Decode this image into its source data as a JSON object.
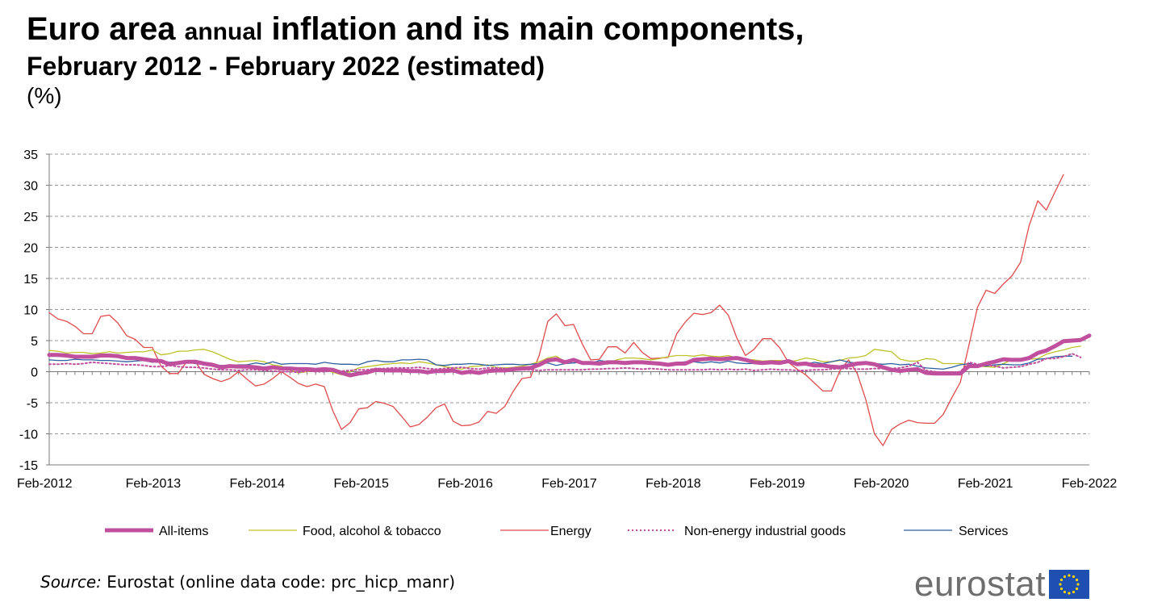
{
  "title": {
    "line1_a": "Euro area",
    "line1_b": "annual",
    "line1_c": "inflation and its main components,",
    "line2": "February 2012 - February 2022 (estimated)",
    "unit": "(%)"
  },
  "source": {
    "label": "Source:",
    "text": "Eurostat (online data code: prc_hicp_manr)"
  },
  "logo": {
    "text": "eurostat",
    "icon": "eu-flag-icon",
    "flag_color": "#1f4fb0",
    "star_color": "#ffd700"
  },
  "chart_data": {
    "type": "line",
    "title": "Euro area annual inflation and its main components, February 2012 - February 2022 (estimated)",
    "ylabel": "(%)",
    "xlabel": "",
    "ylim": [
      -15,
      35
    ],
    "yticks": [
      -15,
      -10,
      -5,
      0,
      5,
      10,
      15,
      20,
      25,
      30,
      35
    ],
    "grid": true,
    "legend_position": "bottom",
    "x_ticks": [
      "Feb-2012",
      "Feb-2013",
      "Feb-2014",
      "Feb-2015",
      "Feb-2016",
      "Feb-2017",
      "Feb-2018",
      "Feb-2019",
      "Feb-2020",
      "Feb-2021",
      "Feb-2022"
    ],
    "series": [
      {
        "name": "All-items",
        "color": "#c0509e",
        "style": "thick",
        "values": [
          2.7,
          2.7,
          2.6,
          2.4,
          2.4,
          2.4,
          2.6,
          2.6,
          2.5,
          2.2,
          2.2,
          2.0,
          1.8,
          1.7,
          1.2,
          1.4,
          1.6,
          1.6,
          1.3,
          1.1,
          0.7,
          0.9,
          0.8,
          0.8,
          0.7,
          0.5,
          0.7,
          0.5,
          0.5,
          0.4,
          0.4,
          0.3,
          0.4,
          0.3,
          -0.2,
          -0.6,
          -0.3,
          -0.1,
          0.3,
          0.2,
          0.2,
          0.2,
          0.1,
          0.1,
          -0.1,
          0.1,
          0.1,
          0.2,
          -0.2,
          0.0,
          -0.2,
          0.1,
          0.2,
          0.2,
          0.4,
          0.5,
          0.6,
          1.1,
          1.8,
          2.0,
          1.5,
          1.9,
          1.4,
          1.4,
          1.3,
          1.5,
          1.5,
          1.4,
          1.5,
          1.5,
          1.4,
          1.3,
          1.1,
          1.3,
          1.3,
          1.9,
          2.0,
          2.1,
          2.0,
          2.1,
          2.2,
          1.9,
          1.5,
          1.4,
          1.5,
          1.4,
          1.7,
          1.2,
          1.3,
          1.0,
          1.0,
          0.8,
          0.7,
          1.0,
          1.3,
          1.4,
          1.2,
          0.7,
          0.3,
          0.1,
          0.3,
          0.4,
          -0.2,
          -0.3,
          -0.3,
          -0.3,
          -0.3,
          0.9,
          0.9,
          1.3,
          1.6,
          2.0,
          1.9,
          1.9,
          2.2,
          3.0,
          3.4,
          4.1,
          4.9,
          5.0,
          5.1,
          5.8
        ]
      },
      {
        "name": "Food, alcohol & tobacco",
        "color": "#bfc22a",
        "style": "thin",
        "values": [
          3.4,
          3.3,
          3.0,
          3.1,
          3.1,
          2.9,
          3.0,
          3.2,
          3.0,
          3.1,
          3.2,
          3.2,
          3.5,
          2.7,
          2.9,
          3.3,
          3.3,
          3.5,
          3.6,
          3.2,
          2.6,
          2.0,
          1.6,
          1.7,
          1.8,
          1.6,
          1.1,
          0.9,
          0.2,
          -0.2,
          0.0,
          0.2,
          0.3,
          -0.1,
          -0.5,
          0.0,
          0.6,
          0.8,
          1.0,
          1.2,
          1.3,
          1.4,
          1.3,
          1.6,
          1.4,
          1.1,
          0.8,
          0.6,
          0.4,
          0.8,
          0.9,
          1.1,
          0.7,
          0.6,
          0.7,
          0.9,
          1.2,
          1.6,
          2.2,
          2.5,
          1.6,
          1.8,
          1.4,
          1.4,
          1.4,
          1.2,
          1.9,
          2.2,
          2.2,
          2.1,
          1.9,
          2.1,
          2.4,
          2.6,
          2.6,
          2.5,
          2.7,
          2.5,
          2.4,
          2.6,
          2.2,
          2.0,
          1.9,
          1.7,
          1.8,
          1.8,
          1.6,
          1.8,
          2.2,
          2.0,
          1.6,
          1.6,
          1.8,
          2.2,
          2.3,
          2.6,
          3.6,
          3.4,
          3.2,
          2.0,
          1.7,
          1.7,
          2.1,
          2.0,
          1.3,
          1.3,
          1.3,
          1.1,
          0.9,
          0.8,
          0.7,
          1.3,
          1.9,
          2.1,
          2.0,
          2.1,
          2.8,
          3.2,
          3.5,
          3.9,
          4.1
        ]
      },
      {
        "name": "Energy",
        "color": "#e04b4b",
        "style": "thin",
        "values": [
          9.5,
          8.5,
          8.1,
          7.3,
          6.1,
          6.1,
          8.9,
          9.1,
          7.8,
          5.8,
          5.2,
          3.9,
          3.9,
          0.9,
          -0.3,
          -0.3,
          1.6,
          1.6,
          -0.4,
          -1.1,
          -1.6,
          -1.1,
          0.0,
          -1.2,
          -2.3,
          -2.0,
          -1.1,
          0.0,
          -0.9,
          -1.9,
          -2.4,
          -2.0,
          -2.4,
          -6.3,
          -9.3,
          -8.2,
          -6.0,
          -5.8,
          -4.8,
          -5.1,
          -5.6,
          -7.2,
          -8.9,
          -8.5,
          -7.3,
          -5.8,
          -5.2,
          -8.0,
          -8.7,
          -8.6,
          -8.1,
          -6.4,
          -6.7,
          -5.6,
          -3.1,
          -1.1,
          -0.9,
          2.6,
          8.1,
          9.3,
          7.4,
          7.6,
          4.5,
          1.9,
          2.0,
          4.0,
          4.0,
          3.0,
          4.7,
          3.1,
          2.1,
          2.2,
          2.3,
          6.1,
          8.0,
          9.4,
          9.2,
          9.5,
          10.7,
          9.1,
          5.4,
          2.6,
          3.6,
          5.3,
          5.3,
          3.8,
          1.5,
          0.4,
          -0.5,
          -1.8,
          -3.1,
          -3.1,
          0.2,
          1.9,
          -0.3,
          -4.5,
          -10.0,
          -11.9,
          -9.3,
          -8.4,
          -7.8,
          -8.2,
          -8.3,
          -8.3,
          -6.9,
          -4.2,
          -1.7,
          4.3,
          10.4,
          13.1,
          12.6,
          14.1,
          15.4,
          17.6,
          23.5,
          27.5,
          26.0,
          28.9,
          31.7
        ]
      },
      {
        "name": "Non-energy industrial goods",
        "color": "#c0509e",
        "style": "dotted",
        "values": [
          1.2,
          1.2,
          1.3,
          1.2,
          1.3,
          1.5,
          1.4,
          1.3,
          1.2,
          1.1,
          1.1,
          1.0,
          0.8,
          0.8,
          1.0,
          0.8,
          0.7,
          0.7,
          0.6,
          0.4,
          0.3,
          0.3,
          0.2,
          0.3,
          0.3,
          0.2,
          0.1,
          0.0,
          0.0,
          -0.1,
          0.1,
          0.0,
          0.0,
          0.1,
          0.1,
          0.2,
          0.3,
          0.3,
          0.5,
          0.5,
          0.6,
          0.6,
          0.6,
          0.7,
          0.5,
          0.4,
          0.5,
          0.6,
          0.7,
          0.5,
          0.4,
          0.6,
          0.6,
          0.5,
          0.3,
          0.3,
          0.3,
          0.2,
          0.3,
          0.3,
          0.3,
          0.3,
          0.3,
          0.4,
          0.4,
          0.5,
          0.5,
          0.6,
          0.5,
          0.4,
          0.5,
          0.4,
          0.3,
          0.3,
          0.3,
          0.3,
          0.3,
          0.4,
          0.3,
          0.4,
          0.3,
          0.4,
          0.2,
          0.3,
          0.4,
          0.3,
          0.3,
          0.2,
          0.2,
          0.3,
          0.3,
          0.4,
          0.5,
          0.5,
          0.4,
          0.4,
          0.5,
          0.5,
          0.5,
          0.6,
          0.9,
          1.5,
          0.2,
          0.0,
          -0.1,
          -0.1,
          0.0,
          1.5,
          1.2,
          1.1,
          0.9,
          0.6,
          0.7,
          0.8,
          1.2,
          1.5,
          2.1,
          2.1,
          2.4,
          2.9,
          2.3
        ]
      },
      {
        "name": "Services",
        "color": "#2f5f9e",
        "style": "thin",
        "values": [
          1.9,
          1.8,
          1.8,
          2.0,
          1.9,
          1.9,
          1.8,
          1.8,
          1.7,
          1.6,
          1.7,
          1.8,
          1.5,
          1.8,
          1.5,
          1.6,
          1.6,
          1.3,
          1.2,
          1.1,
          1.0,
          1.0,
          1.1,
          1.1,
          1.4,
          1.2,
          1.6,
          1.2,
          1.3,
          1.3,
          1.3,
          1.2,
          1.5,
          1.3,
          1.2,
          1.2,
          1.1,
          1.6,
          1.8,
          1.6,
          1.6,
          1.9,
          1.9,
          2.0,
          1.9,
          1.1,
          1.0,
          1.2,
          1.2,
          1.3,
          1.2,
          1.0,
          1.1,
          1.2,
          1.2,
          1.1,
          1.2,
          1.3,
          1.4,
          1.0,
          1.3,
          1.4,
          1.5,
          1.3,
          1.8,
          1.6,
          1.6,
          1.4,
          1.6,
          1.6,
          1.6,
          1.4,
          1.2,
          1.4,
          1.6,
          1.6,
          1.4,
          1.6,
          1.4,
          1.7,
          1.4,
          1.3,
          1.3,
          1.4,
          1.4,
          1.4,
          1.8,
          1.2,
          1.2,
          1.5,
          1.3,
          1.6,
          1.9,
          1.5,
          1.4,
          1.6,
          1.3,
          1.2,
          1.3,
          1.1,
          1.2,
          0.9,
          0.6,
          0.5,
          0.4,
          0.7,
          1.1,
          1.3,
          1.0,
          0.9,
          1.1,
          1.2,
          1.1,
          1.1,
          1.4,
          2.0,
          2.1,
          2.4,
          2.5,
          2.5
        ]
      }
    ]
  }
}
